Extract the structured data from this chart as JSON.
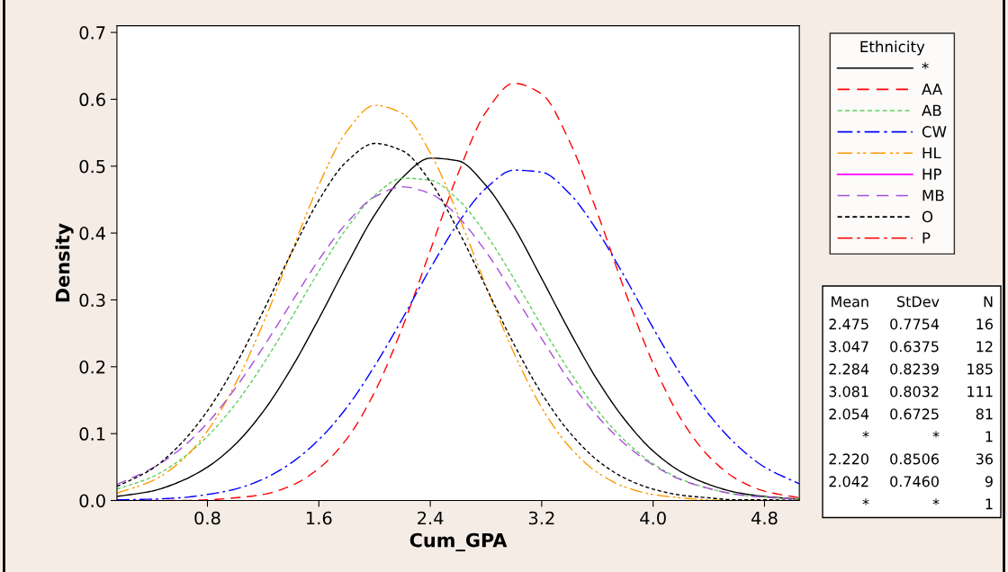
{
  "chart_data": {
    "type": "line",
    "xlabel": "Cum_GPA",
    "ylabel": "Density",
    "legend_title": "Ethnicity",
    "x": [
      0.15,
      0.4,
      0.6,
      0.8,
      1.0,
      1.2,
      1.4,
      1.6,
      1.8,
      2.0,
      2.2,
      2.4,
      2.6,
      2.8,
      3.0,
      3.2,
      3.4,
      3.6,
      3.8,
      4.0,
      4.2,
      4.4,
      4.6,
      4.8,
      5.05
    ],
    "series": [
      {
        "name": "*",
        "color": "#000000",
        "line_style": "solid",
        "values": [
          0.006,
          0.014,
          0.028,
          0.05,
          0.084,
          0.133,
          0.197,
          0.272,
          0.352,
          0.427,
          0.483,
          0.512,
          0.508,
          0.471,
          0.409,
          0.332,
          0.253,
          0.18,
          0.12,
          0.074,
          0.043,
          0.024,
          0.012,
          0.006,
          0.002
        ]
      },
      {
        "name": "AA",
        "color": "#ff0000",
        "line_style": "dashed",
        "values": [
          0.0,
          0.0,
          0.0,
          0.001,
          0.004,
          0.009,
          0.022,
          0.048,
          0.092,
          0.162,
          0.259,
          0.374,
          0.489,
          0.581,
          0.624,
          0.608,
          0.537,
          0.43,
          0.312,
          0.205,
          0.122,
          0.066,
          0.032,
          0.014,
          0.004
        ]
      },
      {
        "name": "AB",
        "color": "#5fcf5f",
        "line_style": "dotted",
        "values": [
          0.017,
          0.035,
          0.06,
          0.096,
          0.144,
          0.204,
          0.272,
          0.343,
          0.407,
          0.456,
          0.482,
          0.479,
          0.45,
          0.398,
          0.332,
          0.261,
          0.193,
          0.135,
          0.089,
          0.055,
          0.032,
          0.018,
          0.009,
          0.005,
          0.002
        ]
      },
      {
        "name": "CW",
        "color": "#0000ff",
        "line_style": "dashdot",
        "values": [
          0.001,
          0.002,
          0.004,
          0.009,
          0.017,
          0.032,
          0.056,
          0.091,
          0.139,
          0.201,
          0.272,
          0.347,
          0.415,
          0.467,
          0.494,
          0.491,
          0.459,
          0.403,
          0.333,
          0.258,
          0.188,
          0.129,
          0.083,
          0.05,
          0.025
        ]
      },
      {
        "name": "HL",
        "color": "#ff9900",
        "line_style": "dashdotdot",
        "values": [
          0.011,
          0.029,
          0.057,
          0.104,
          0.174,
          0.265,
          0.37,
          0.472,
          0.552,
          0.591,
          0.579,
          0.52,
          0.427,
          0.321,
          0.221,
          0.139,
          0.08,
          0.042,
          0.02,
          0.009,
          0.004,
          0.001,
          0.0,
          0.0,
          0.0
        ]
      },
      {
        "name": "HP",
        "color": "#ff00ff",
        "line_style": "solid",
        "values": [
          null,
          null,
          null,
          null,
          null,
          null,
          null,
          null,
          null,
          null,
          null,
          null,
          null,
          null,
          null,
          null,
          null,
          null,
          null,
          null,
          null,
          null,
          null,
          null,
          null
        ]
      },
      {
        "name": "MB",
        "color": "#a64dd9",
        "line_style": "dashed",
        "values": [
          0.024,
          0.048,
          0.076,
          0.116,
          0.168,
          0.229,
          0.295,
          0.36,
          0.415,
          0.454,
          0.469,
          0.459,
          0.424,
          0.372,
          0.308,
          0.242,
          0.179,
          0.126,
          0.084,
          0.053,
          0.031,
          0.018,
          0.009,
          0.005,
          0.002
        ]
      },
      {
        "name": "O",
        "color": "#000000",
        "line_style": "dotted",
        "values": [
          0.021,
          0.047,
          0.083,
          0.134,
          0.202,
          0.283,
          0.369,
          0.449,
          0.507,
          0.534,
          0.523,
          0.477,
          0.404,
          0.319,
          0.234,
          0.16,
          0.102,
          0.06,
          0.033,
          0.017,
          0.008,
          0.004,
          0.001,
          0.001,
          0.0
        ]
      },
      {
        "name": "P",
        "color": "#ff0000",
        "line_style": "dashdot",
        "values": [
          null,
          null,
          null,
          null,
          null,
          null,
          null,
          null,
          null,
          null,
          null,
          null,
          null,
          null,
          null,
          null,
          null,
          null,
          null,
          null,
          null,
          null,
          null,
          null,
          null
        ]
      }
    ],
    "xlim": [
      0.15,
      5.05
    ],
    "xticks": [
      0.8,
      1.6,
      2.4,
      3.2,
      {
        "value": 4,
        "label": "4.0"
      },
      4.8
    ],
    "ylim": [
      0,
      0.71
    ],
    "yticks": [
      {
        "value": 0,
        "label": "0.0"
      },
      0.1,
      0.2,
      0.3,
      0.4,
      0.5,
      0.6,
      0.7
    ],
    "grid": false,
    "legend": "right",
    "marker": "none",
    "annotations": [
      "Mean StDev N",
      "2.475 0.7754 16",
      "3.047 0.6375 12",
      "2.284 0.8239 185",
      "3.081 0.8032 111",
      "2.054 0.6725 81",
      "* * 1",
      "2.220 0.8506 36",
      "2.042 0.7460 9",
      "* * 1"
    ]
  }
}
